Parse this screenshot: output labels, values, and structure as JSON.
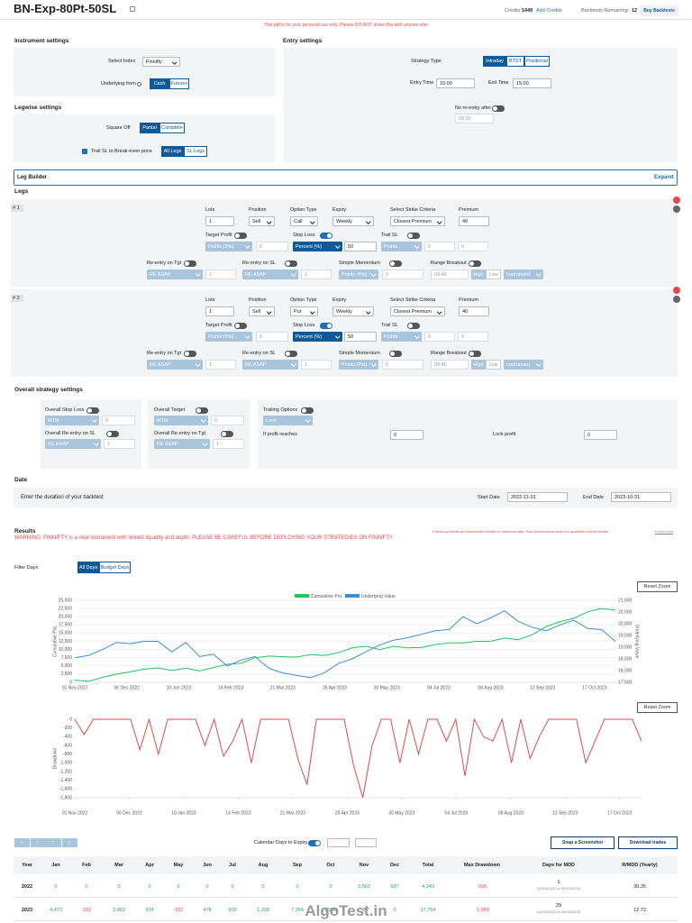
{
  "header": {
    "title": "BN-Exp-80Pt-50SL",
    "credits_label": "Credits:",
    "credits": "1449",
    "add_credits": "Add Credits",
    "backtests_label": "Backtests Remaining:",
    "backtests": "12",
    "buy": "Buy Backtests",
    "notice": "This pdf is for your personal use only. Please DO NOT share this with anyone else"
  },
  "instrument": {
    "title": "Instrument settings",
    "index_label": "Select Index",
    "index": "Finnifty",
    "underlying_label": "Underlying from",
    "options": [
      "Cash",
      "Futures"
    ]
  },
  "entry": {
    "title": "Entry settings",
    "strategy_label": "Strategy Type",
    "strategy_options": [
      "Intraday",
      "BTST",
      "Positional"
    ],
    "entry_time_label": "Entry Time",
    "entry_time": "10:00",
    "exit_time_label": "Exit Time",
    "exit_time": "15:00",
    "no_reentry_label": "No re-entry after",
    "no_reentry_time": "09:35"
  },
  "legwise": {
    "title": "Legwise settings",
    "square_off_label": "Square Off",
    "square_off_options": [
      "Partial",
      "Complete"
    ],
    "trail_label": "Trail SL to Break-even price",
    "trail_options": [
      "All Legs",
      "SL Legs"
    ]
  },
  "leg_builder": {
    "title": "Leg Builder",
    "expand": "Expand"
  },
  "legs": {
    "title": "Legs",
    "items": [
      {
        "id": "# 1",
        "fields": [
          {
            "label": "Lots",
            "value": "1"
          },
          {
            "label": "Position",
            "value": "Sell"
          },
          {
            "label": "Option Type",
            "value": "Call"
          },
          {
            "label": "Expiry",
            "value": "Weekly"
          },
          {
            "label": "Select Strike Criteria",
            "value": "Closest Premium"
          },
          {
            "label": "Premium",
            "value": "40"
          }
        ],
        "target_label": "Target Profit",
        "target_type": "Points (Pts)",
        "target_value": "0",
        "sl_label": "Stop Loss",
        "sl_type": "Percent (%)",
        "sl_value": "50",
        "trail_label": "Trail SL",
        "trail_type": "Points",
        "trail_x": "0",
        "trail_y": "0",
        "re_tgt_label": "Re-entry on Tgt",
        "re_tgt_type": "RE ASAP",
        "re_tgt_value": "1",
        "re_sl_label": "Re-entry on SL",
        "re_sl_type": "RE ASAP",
        "re_sl_value": "1",
        "momentum_label": "Simple Momentum",
        "momentum_type": "Points (Pts) ↑",
        "momentum_value": "0",
        "rb_label": "Range Breakout",
        "rb_time": "09:45",
        "rb_options": [
          "High",
          "Low"
        ],
        "rb_source": "Instrument"
      },
      {
        "id": "# 2",
        "fields": [
          {
            "label": "Lots",
            "value": "1"
          },
          {
            "label": "Position",
            "value": "Sell"
          },
          {
            "label": "Option Type",
            "value": "Put"
          },
          {
            "label": "Expiry",
            "value": "Weekly"
          },
          {
            "label": "Select Strike Criteria",
            "value": "Closest Premium"
          },
          {
            "label": "Premium",
            "value": "40"
          }
        ],
        "target_label": "Target Profit",
        "target_type": "Points (Pts)",
        "target_value": "0",
        "sl_label": "Stop Loss",
        "sl_type": "Percent (%)",
        "sl_value": "50",
        "trail_label": "Trail SL",
        "trail_type": "Points",
        "trail_x": "0",
        "trail_y": "0",
        "re_tgt_label": "Re-entry on Tgt",
        "re_tgt_type": "RE ASAP",
        "re_tgt_value": "1",
        "re_sl_label": "Re-entry on SL",
        "re_sl_type": "RE ASAP",
        "re_sl_value": "1",
        "momentum_label": "Simple Momentum",
        "momentum_type": "Points (Pts) ↑",
        "momentum_value": "0",
        "rb_label": "Range Breakout",
        "rb_time": "09:45",
        "rb_options": [
          "High",
          "Low"
        ],
        "rb_source": "Instrument"
      }
    ]
  },
  "overall": {
    "title": "Overall strategy settings",
    "sl_label": "Overall Stop Loss",
    "sl_type": "MTM",
    "sl_value": "0",
    "re_sl_label": "Overall Re-entry on SL",
    "re_sl_type": "RE ASAP",
    "re_sl_value": "1",
    "tgt_label": "Overall Target",
    "tgt_type": "MTM",
    "tgt_value": "0",
    "re_tgt_label": "Overall Re-entry on Tgt",
    "re_tgt_type": "RE ASAP",
    "re_tgt_value": "1",
    "trailing_label": "Trailing Options",
    "trailing_type": "Lock",
    "profit_label": "If profit reaches",
    "profit_value": "0",
    "lock_label": "Lock profit",
    "lock_value": "0"
  },
  "date": {
    "title": "Date",
    "prompt": "Enter the duration of your backtest",
    "start_label": "Start Date",
    "start": "2022-11-01",
    "end_label": "End Date",
    "end": "2023-10-31"
  },
  "results": {
    "title": "Results",
    "warning": "WARNING: FINNIFTY is a new instrument with limited liquidity and depth. PLEASE BE CAREFUL BEFORE DEPLOYING YOUR STRATEGIES ON FINNIFTY",
    "disclaimer": "Following results are backtested results on historical data. Past performance does not guarantee future results.",
    "know_more": "Know more",
    "filter_label": "Filter Days",
    "filters": [
      "All Days",
      "Budget Days"
    ],
    "reset_zoom": "Reset Zoom"
  },
  "pnl_chart": {
    "type": "line",
    "y_label": "Cumulative PnL",
    "y2_label": "Underlying Value",
    "xlim": [
      0,
      364
    ],
    "xticks": [
      {
        "value": 0,
        "label": "01 Nov 2022"
      },
      {
        "value": 35,
        "label": "06 Dec 2022"
      },
      {
        "value": 70,
        "label": "10 Jan 2023"
      },
      {
        "value": 105,
        "label": "14 Feb 2023"
      },
      {
        "value": 140,
        "label": "21 Mar 2023"
      },
      {
        "value": 175,
        "label": "25 Apr 2023"
      },
      {
        "value": 210,
        "label": "30 May 2023"
      },
      {
        "value": 245,
        "label": "04 Jul 2023"
      },
      {
        "value": 280,
        "label": "08 Aug 2023"
      },
      {
        "value": 315,
        "label": "12 Sep 2023"
      },
      {
        "value": 350,
        "label": "17 Oct 2023"
      }
    ],
    "ylim": [
      0,
      25000
    ],
    "yticks": [
      0,
      {
        "value": 2500,
        "label": "2,500"
      },
      {
        "value": 5000,
        "label": "5,000"
      },
      {
        "value": 7500,
        "label": "7,500"
      },
      {
        "value": 10000,
        "label": "10,000"
      },
      {
        "value": 12500,
        "label": "12,500"
      },
      {
        "value": 15000,
        "label": "15,000"
      },
      {
        "value": 17500,
        "label": "17,500"
      },
      {
        "value": 20000,
        "label": "20,000"
      },
      {
        "value": 22500,
        "label": "22,500"
      },
      {
        "value": 25000,
        "label": "25,000"
      }
    ],
    "y2lim": [
      17500,
      21000
    ],
    "y2ticks": [
      {
        "value": 17500,
        "label": "17,500"
      },
      {
        "value": 18000,
        "label": "18,000"
      },
      {
        "value": 18500,
        "label": "18,500"
      },
      {
        "value": 19000,
        "label": "19,000"
      },
      {
        "value": 19500,
        "label": "19,500"
      },
      {
        "value": 20000,
        "label": "20,000"
      },
      {
        "value": 20500,
        "label": "20,500"
      },
      {
        "value": 21000,
        "label": "21,000"
      }
    ],
    "grid": true,
    "series": [
      {
        "name": "Cumulative PnL",
        "color": "#22c55e",
        "values": [
          700,
          300,
          1500,
          2500,
          3200,
          4000,
          4400,
          3600,
          4300,
          3500,
          4500,
          5500,
          5800,
          7500,
          8000,
          7800,
          7700,
          8500,
          8200,
          9000,
          10500,
          11000,
          10000,
          11000,
          10500,
          10600,
          11500,
          12000,
          12000,
          12500,
          12500,
          13500,
          13000,
          14500,
          17000,
          18500,
          19500,
          21500,
          22500,
          22000
        ]
      },
      {
        "name": "Underlying Value",
        "color": "#3b8fd9",
        "axis": "y2",
        "values": [
          18550,
          18650,
          18900,
          19200,
          19150,
          19250,
          19250,
          18800,
          19200,
          18600,
          18700,
          18200,
          18450,
          18600,
          18100,
          17900,
          17800,
          17700,
          17900,
          18300,
          18500,
          18800,
          19100,
          19300,
          19400,
          19550,
          19700,
          19750,
          20300,
          20000,
          20250,
          20550,
          20100,
          19850,
          19700,
          19950,
          20150,
          19800,
          19750,
          19250
        ]
      }
    ]
  },
  "drawdown_chart": {
    "type": "line",
    "y_label": "Drawdown",
    "xlim": [
      0,
      364
    ],
    "xticks": [
      {
        "value": 0,
        "label": "01 Nov 2022"
      },
      {
        "value": 35,
        "label": "06 Dec 2022"
      },
      {
        "value": 70,
        "label": "10 Jan 2023"
      },
      {
        "value": 105,
        "label": "14 Feb 2023"
      },
      {
        "value": 140,
        "label": "21 Mar 2023"
      },
      {
        "value": 175,
        "label": "25 Apr 2023"
      },
      {
        "value": 210,
        "label": "30 May 2023"
      },
      {
        "value": 245,
        "label": "04 Jul 2023"
      },
      {
        "value": 280,
        "label": "08 Aug 2023"
      },
      {
        "value": 315,
        "label": "12 Sep 2023"
      },
      {
        "value": 350,
        "label": "17 Oct 2023"
      }
    ],
    "ylim": [
      -1800,
      0
    ],
    "yticks": [
      0,
      -200,
      -400,
      -600,
      -800,
      {
        "value": -1000,
        "label": "-1,000"
      },
      {
        "value": -1200,
        "label": "-1,200"
      },
      {
        "value": -1400,
        "label": "-1,400"
      },
      {
        "value": -1600,
        "label": "-1,600"
      },
      {
        "value": -1800,
        "label": "-1,800"
      }
    ],
    "grid": false,
    "series": [
      {
        "name": "Drawdown",
        "color": "#e5484d",
        "values": [
          0,
          -350,
          0,
          0,
          0,
          0,
          0,
          -700,
          0,
          -800,
          0,
          0,
          0,
          0,
          -600,
          0,
          -850,
          -500,
          0,
          -1000,
          0,
          0,
          0,
          0,
          -900,
          -1500,
          0,
          0,
          0,
          0,
          -1050,
          -1800,
          -600,
          0,
          0,
          -1000,
          0,
          -800,
          0,
          0,
          -500,
          0,
          -1300,
          0,
          -400,
          -500,
          0,
          -1000,
          0,
          -900,
          -400,
          0,
          0,
          0,
          0,
          -1000,
          -500,
          0,
          0,
          0,
          0,
          -500
        ]
      }
    ]
  },
  "toolbar": {
    "pages": [
      "«",
      "‹",
      "›",
      "»"
    ],
    "calendar_label": "Calendar Days to Expiry",
    "snap": "Snap a Screenshot",
    "download": "Download trades"
  },
  "table": {
    "headers": [
      "Year",
      "Jan",
      "Feb",
      "Mar",
      "Apr",
      "May",
      "Jun",
      "Jul",
      "Aug",
      "Sep",
      "Oct",
      "Nov",
      "Dec",
      "Total",
      "Max Drawdown",
      "Days for MDD",
      "R/MDD (Yearly)"
    ],
    "rows": [
      {
        "cells": [
          "2022",
          "0",
          "0",
          "0",
          "0",
          "0",
          "0",
          "0",
          "0",
          "0",
          "0",
          "3,562",
          "687",
          "4,249",
          "-596"
        ],
        "days": "1",
        "range": "[29/10/2022 to 29/10/2022]",
        "ratio": "30.35"
      },
      {
        "cells": [
          "2023",
          "4,473",
          "-552",
          "2,883",
          "924",
          "-932",
          "478",
          "502",
          "1,338",
          "7,354",
          "1,286",
          "0",
          "0",
          "17,754",
          "-1,089"
        ],
        "days": "29",
        "range": "[09/03/2023 to 16/03/2023]",
        "ratio": "12.72"
      }
    ]
  },
  "watermark": "AlgoTest.in"
}
